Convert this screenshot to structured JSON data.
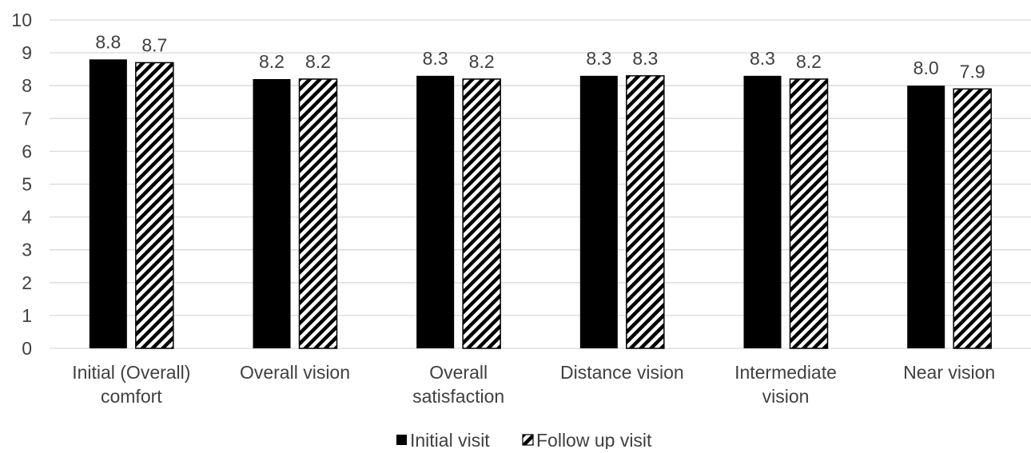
{
  "chart_data": {
    "type": "bar",
    "categories": [
      [
        "Initial (Overall)",
        "comfort"
      ],
      [
        "Overall vision"
      ],
      [
        "Overall",
        "satisfaction"
      ],
      [
        "Distance vision"
      ],
      [
        "Intermediate",
        "vision"
      ],
      [
        "Near vision"
      ]
    ],
    "series": [
      {
        "name": "Initial visit",
        "values": [
          8.8,
          8.2,
          8.3,
          8.3,
          8.3,
          8.0
        ],
        "value_labels": [
          "8.8",
          "8.2",
          "8.3",
          "8.3",
          "8.3",
          "8.0"
        ],
        "color": "#000000",
        "pattern": "solid"
      },
      {
        "name": "Follow up visit",
        "values": [
          8.7,
          8.2,
          8.2,
          8.3,
          8.2,
          7.9
        ],
        "value_labels": [
          "8.7",
          "8.2",
          "8.2",
          "8.3",
          "8.2",
          "7.9"
        ],
        "color": "#000000",
        "pattern": "diagonal-stripes"
      }
    ],
    "ylim": [
      0,
      10
    ],
    "yticks": [
      "0",
      "1",
      "2",
      "3",
      "4",
      "5",
      "6",
      "7",
      "8",
      "9",
      "10"
    ],
    "grid": true,
    "legend_position": "bottom-center",
    "colors": {
      "grid": "#d9d9d9",
      "text": "#404040",
      "bar": "#000000"
    }
  }
}
